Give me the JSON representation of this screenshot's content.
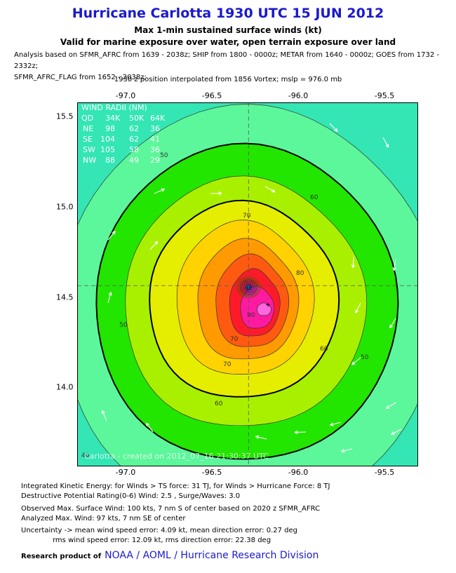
{
  "header": {
    "title": "Hurricane Carlotta 1930 UTC 15 JUN 2012",
    "subtitle_1": "Max 1-min sustained surface winds (kt)",
    "subtitle_2": "Valid for marine exposure over water, open terrain exposure over land",
    "analysis_line_1": "Analysis based on SFMR_AFRC from 1639 - 2038z; SHIP from 1800 - 0000z; METAR from 1640 - 0000z; GOES from 1732 - 2332z;",
    "analysis_line_2": "SFMR_AFRC_FLAG from 1652 - 2038z;",
    "position_line": "1930 z position interpolated from 1856 Vortex; mslp = 976.0 mb"
  },
  "axes": {
    "lon_ticks": [
      "-97.0",
      "-96.5",
      "-96.0",
      "-95.5"
    ],
    "lat_ticks": [
      "15.5",
      "15.0",
      "14.5",
      "14.0"
    ]
  },
  "map": {
    "lon_range": [
      -97.25,
      -95.3
    ],
    "lat_range": [
      13.6,
      15.6
    ],
    "center": {
      "lon": -96.27,
      "lat": 14.57
    },
    "max_wind_marker": {
      "lon": -96.16,
      "lat": 14.49
    },
    "contour_labels": [
      "50",
      "60",
      "70",
      "80",
      "90",
      "70",
      "60",
      "50",
      "40",
      "50",
      "60",
      "70"
    ],
    "colors": {
      "background": "#33e6b3",
      "lt40": "#40f0c0",
      "c40_50": "#5cf79a",
      "c50_60": "#22e600",
      "c60_70": "#a8f000",
      "c70_80": "#e6ee00",
      "c80_90": "#ffd200",
      "c90_100": "#ff9a00",
      "c100_110": "#ff5a10",
      "c110": "#ff1a2a",
      "c120": "#ff1aa0",
      "c130": "#ff66e0"
    },
    "wind_radii": {
      "title": "WIND RADII (NM)",
      "header": [
        "QD",
        "34K",
        "50K",
        "64K"
      ],
      "rows": [
        [
          "NE",
          "98",
          "62",
          "36"
        ],
        [
          "SE",
          "104",
          "62",
          "41"
        ],
        [
          "SW",
          "105",
          "58",
          "36"
        ],
        [
          "NW",
          "88",
          "49",
          "29"
        ]
      ]
    },
    "watermark": "Carlotta - created on 2012_07_16 21:30:37 UTC"
  },
  "stats": {
    "ike": "Integrated Kinetic Energy: for Winds > TS force: 31 TJ, for Winds > Hurricane Force: 8 TJ",
    "dpr": "Destructive Potential Rating(0-6)   Wind: 2.5 , Surge/Waves: 3.0",
    "observed": "Observed Max. Surface Wind: 100 kts, 7 nm S of center based on 2020 z SFMR_AFRC",
    "analyzed": "Analyzed Max. Wind: 97 kts, 7 nm  SE of center",
    "uncertainty_1": "Uncertainty -> mean wind speed error: 4.09 kt, mean direction error: 0.27 deg",
    "uncertainty_2": "rms wind speed error: 12.09 kt, rms direction error: 22.38 deg"
  },
  "footer": {
    "prefix": "Research product of",
    "org": "NOAA  /  AOML  /  Hurricane Research Division"
  }
}
